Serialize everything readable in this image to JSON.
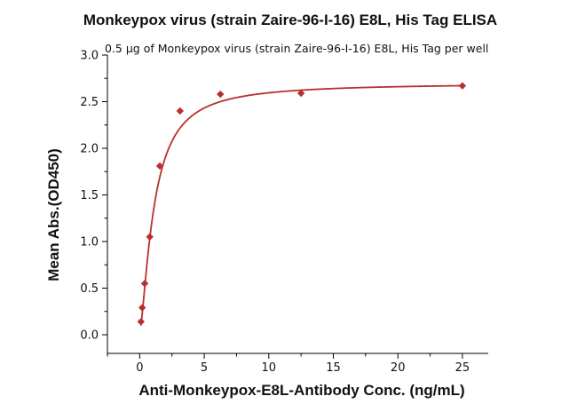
{
  "chart_data": {
    "type": "scatter",
    "title": "Monkeypox virus (strain Zaire-96-I-16) E8L, His Tag ELISA",
    "subtitle": "0.5 μg of Monkeypox virus (strain Zaire-96-I-16) E8L, His Tag per well",
    "xlabel": "Anti-Monkeypox-E8L-Antibody Conc. (ng/mL)",
    "ylabel": "Mean Abs.(OD450)",
    "xlim": [
      -2.5,
      27
    ],
    "ylim": [
      -0.2,
      3.0
    ],
    "x_ticks": [
      0,
      5,
      10,
      15,
      20,
      25
    ],
    "x_tick_labels": [
      "0",
      "5",
      "10",
      "15",
      "20",
      "25"
    ],
    "y_ticks": [
      0.0,
      0.5,
      1.0,
      1.5,
      2.0,
      2.5,
      3.0
    ],
    "y_tick_labels": [
      "0.0",
      "0.5",
      "1.0",
      "1.5",
      "2.0",
      "2.5",
      "3.0"
    ],
    "grid": false,
    "series": [
      {
        "color": "#b7312c",
        "marker": "diamond",
        "x": [
          0.098,
          0.195,
          0.39,
          0.78,
          1.56,
          3.125,
          6.25,
          12.5,
          25
        ],
        "y": [
          0.14,
          0.29,
          0.55,
          1.05,
          1.81,
          2.4,
          2.58,
          2.59,
          2.67
        ],
        "fit": "4PL"
      }
    ]
  }
}
